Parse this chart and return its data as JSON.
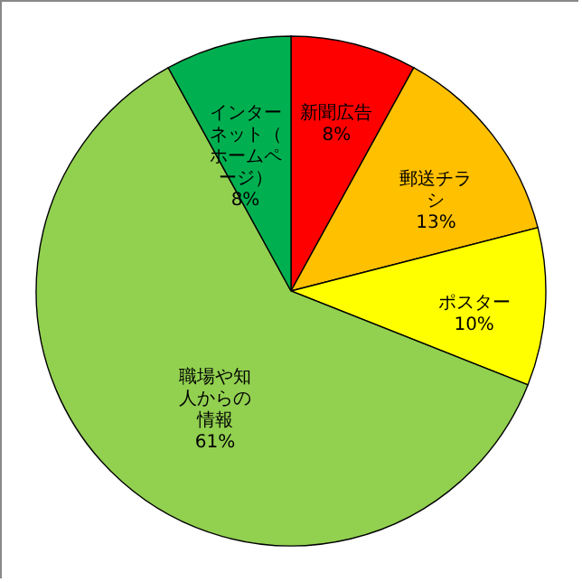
{
  "chart_data": {
    "type": "pie",
    "categories": [
      "新聞広告",
      "郵送チラシ",
      "ポスター",
      "職場や知人からの情報",
      "インターネット（ホームページ）"
    ],
    "values": [
      8,
      13,
      10,
      61,
      8
    ],
    "colors": [
      "#ff0000",
      "#ffc000",
      "#ffff00",
      "#92d050",
      "#00b050"
    ],
    "value_labels": [
      "8%",
      "13%",
      "10%",
      "61%",
      "8%"
    ]
  }
}
